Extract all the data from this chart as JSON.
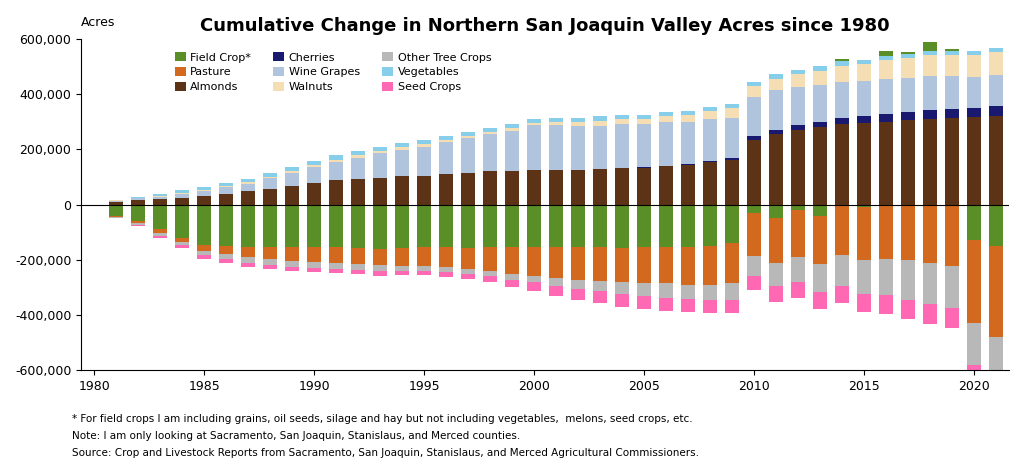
{
  "title": "Cumulative Change in Northern San Joaquin Valley Acres since 1980",
  "ylabel_text": "Acres",
  "footnote1": "* For field crops I am including grains, oil seeds, silage and hay but not including vegetables,  melons, seed crops, etc.",
  "footnote2": "Note: I am only looking at Sacramento, San Joaquin, Stanislaus, and Merced counties.",
  "footnote3": "Source: Crop and Livestock Reports from Sacramento, San Joaquin, Stanislaus, and Merced Agricultural Commissioners.",
  "years": [
    1980,
    1981,
    1982,
    1983,
    1984,
    1985,
    1986,
    1987,
    1988,
    1989,
    1990,
    1991,
    1992,
    1993,
    1994,
    1995,
    1996,
    1997,
    1998,
    1999,
    2000,
    2001,
    2002,
    2003,
    2004,
    2005,
    2006,
    2007,
    2008,
    2009,
    2010,
    2011,
    2012,
    2013,
    2014,
    2015,
    2016,
    2017,
    2018,
    2019,
    2020,
    2021
  ],
  "series": {
    "Field Crop*": [
      0,
      -40000,
      -60000,
      -90000,
      -120000,
      -145000,
      -150000,
      -155000,
      -155000,
      -155000,
      -155000,
      -155000,
      -158000,
      -160000,
      -158000,
      -155000,
      -155000,
      -158000,
      -155000,
      -155000,
      -155000,
      -155000,
      -155000,
      -155000,
      -158000,
      -155000,
      -155000,
      -155000,
      -150000,
      -140000,
      -30000,
      -50000,
      -20000,
      -40000,
      10000,
      -10000,
      20000,
      10000,
      30000,
      5000,
      -130000,
      -150000
    ],
    "Pasture": [
      0,
      -5000,
      -8000,
      -12000,
      -15000,
      -22000,
      -28000,
      -35000,
      -42000,
      -48000,
      -52000,
      -56000,
      -58000,
      -60000,
      -65000,
      -68000,
      -70000,
      -75000,
      -85000,
      -95000,
      -105000,
      -112000,
      -118000,
      -122000,
      -124000,
      -128000,
      -130000,
      -135000,
      -140000,
      -145000,
      -155000,
      -162000,
      -168000,
      -175000,
      -182000,
      -190000,
      -196000,
      -202000,
      -212000,
      -222000,
      -300000,
      -330000
    ],
    "Almonds": [
      0,
      10000,
      15000,
      20000,
      25000,
      32000,
      40000,
      48000,
      58000,
      68000,
      78000,
      88000,
      93000,
      98000,
      103000,
      105000,
      110000,
      115000,
      120000,
      122000,
      125000,
      125000,
      125000,
      128000,
      132000,
      132000,
      138000,
      143000,
      153000,
      163000,
      235000,
      255000,
      270000,
      280000,
      290000,
      295000,
      300000,
      305000,
      310000,
      315000,
      318000,
      322000
    ],
    "Cherries": [
      0,
      0,
      0,
      0,
      0,
      0,
      0,
      0,
      0,
      0,
      0,
      0,
      0,
      0,
      0,
      0,
      0,
      0,
      0,
      0,
      0,
      0,
      0,
      0,
      2000,
      3000,
      3000,
      4000,
      4000,
      4000,
      12000,
      15000,
      17000,
      19000,
      22000,
      25000,
      27000,
      29000,
      32000,
      32000,
      32000,
      35000
    ],
    "Wine Grapes": [
      0,
      4000,
      7000,
      9000,
      13000,
      17000,
      22000,
      27000,
      37000,
      47000,
      57000,
      67000,
      77000,
      87000,
      95000,
      105000,
      115000,
      125000,
      135000,
      145000,
      162000,
      162000,
      158000,
      158000,
      158000,
      158000,
      158000,
      153000,
      153000,
      148000,
      143000,
      143000,
      138000,
      133000,
      133000,
      128000,
      128000,
      123000,
      123000,
      118000,
      113000,
      113000
    ],
    "Walnuts": [
      0,
      1000,
      2000,
      3000,
      4000,
      4000,
      4000,
      5000,
      6000,
      7000,
      7000,
      8000,
      8000,
      9000,
      9000,
      9000,
      9000,
      9000,
      9000,
      9000,
      9000,
      13000,
      16000,
      18000,
      18000,
      18000,
      20000,
      23000,
      28000,
      33000,
      38000,
      43000,
      48000,
      53000,
      58000,
      62000,
      67000,
      72000,
      77000,
      77000,
      77000,
      82000
    ],
    "Other Tree Crops": [
      0,
      -2000,
      -5000,
      -12000,
      -12000,
      -15000,
      -20000,
      -22000,
      -22000,
      -22000,
      -22000,
      -22000,
      -22000,
      -22000,
      -18000,
      -18000,
      -18000,
      -18000,
      -18000,
      -22000,
      -22000,
      -27000,
      -32000,
      -37000,
      -42000,
      -47000,
      -52000,
      -52000,
      -57000,
      -62000,
      -72000,
      -82000,
      -92000,
      -102000,
      -112000,
      -122000,
      -132000,
      -142000,
      -147000,
      -152000,
      -152000,
      -157000
    ],
    "Vegetables": [
      0,
      3000,
      5000,
      8000,
      12000,
      12000,
      12000,
      12000,
      15000,
      15000,
      15000,
      15000,
      15000,
      15000,
      15000,
      15000,
      15000,
      15000,
      15000,
      15000,
      15000,
      15000,
      15000,
      15000,
      15000,
      15000,
      15000,
      15000,
      15000,
      15000,
      15000,
      15000,
      15000,
      15000,
      15000,
      15000,
      15000,
      15000,
      15000,
      15000,
      15000,
      15000
    ],
    "Seed Crops": [
      0,
      0,
      -3000,
      -6000,
      -10000,
      -15000,
      -15000,
      -15000,
      -15000,
      -15000,
      -15000,
      -15000,
      -15000,
      -15000,
      -15000,
      -15000,
      -18000,
      -18000,
      -22000,
      -28000,
      -32000,
      -37000,
      -42000,
      -42000,
      -47000,
      -47000,
      -47000,
      -47000,
      -47000,
      -47000,
      -52000,
      -57000,
      -57000,
      -62000,
      -62000,
      -67000,
      -67000,
      -72000,
      -72000,
      -72000,
      -82000,
      -92000
    ]
  },
  "colors": {
    "Field Crop*": "#5a8f28",
    "Pasture": "#d2691e",
    "Almonds": "#5c3317",
    "Cherries": "#191970",
    "Wine Grapes": "#b0c4de",
    "Walnuts": "#f5deb3",
    "Other Tree Crops": "#b8b8b8",
    "Vegetables": "#87ceeb",
    "Seed Crops": "#ff69b4"
  },
  "pos_stack_order": [
    "Almonds",
    "Cherries",
    "Wine Grapes",
    "Walnuts",
    "Vegetables",
    "Field Crop*"
  ],
  "neg_stack_order": [
    "Field Crop*",
    "Pasture",
    "Other Tree Crops",
    "Seed Crops"
  ],
  "legend_order": [
    "Field Crop*",
    "Pasture",
    "Almonds",
    "Cherries",
    "Wine Grapes",
    "Walnuts",
    "Other Tree Crops",
    "Vegetables",
    "Seed Crops"
  ],
  "ylim": [
    -600000,
    600000
  ],
  "yticks": [
    -600000,
    -400000,
    -200000,
    0,
    200000,
    400000,
    600000
  ],
  "xticks": [
    1980,
    1985,
    1990,
    1995,
    2000,
    2005,
    2010,
    2015,
    2020
  ],
  "bar_width": 0.65,
  "background_color": "#ffffff",
  "title_fontsize": 13,
  "tick_fontsize": 9,
  "legend_fontsize": 8,
  "footnote_fontsize": 7.5
}
